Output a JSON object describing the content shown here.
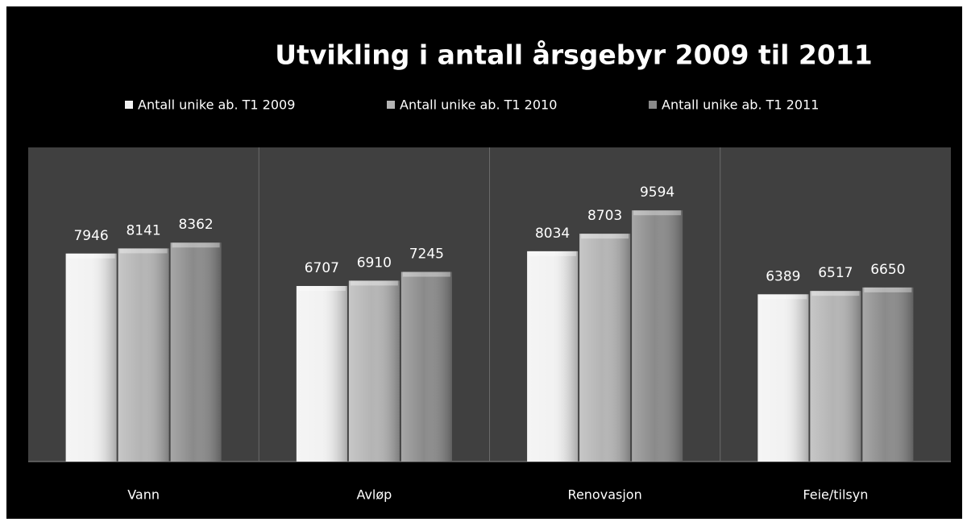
{
  "chart_data": {
    "type": "bar",
    "title": "Utvikling i antall årsgebyr 2009 til 2011",
    "categories": [
      "Vann",
      "Avløp",
      "Renovasjon",
      "Feie/tilsyn"
    ],
    "series": [
      {
        "name": "Antall unike ab. T1 2009",
        "color": "#f2f2f2",
        "values": [
          7946,
          6707,
          8034,
          6389
        ]
      },
      {
        "name": "Antall unike ab. T1 2010",
        "color": "#b4b4b4",
        "values": [
          8141,
          6910,
          8703,
          6517
        ]
      },
      {
        "name": "Antall unike ab. T1 2011",
        "color": "#8a8a8a",
        "values": [
          8362,
          7245,
          9594,
          6650
        ]
      }
    ],
    "ylim": [
      0,
      12000
    ],
    "legend": "top"
  }
}
